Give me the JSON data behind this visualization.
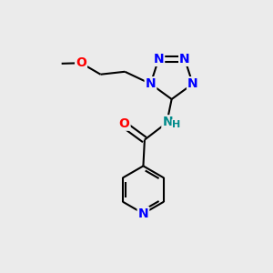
{
  "bg_color": "#ebebeb",
  "bond_color": "#000000",
  "bond_width": 1.5,
  "atom_colors": {
    "N_blue": "#0000ff",
    "N_teal": "#008b8b",
    "O_red": "#ff0000",
    "C_black": "#000000"
  },
  "font_size_atom": 10,
  "font_size_small": 8,
  "xlim": [
    0,
    10
  ],
  "ylim": [
    0,
    10
  ]
}
